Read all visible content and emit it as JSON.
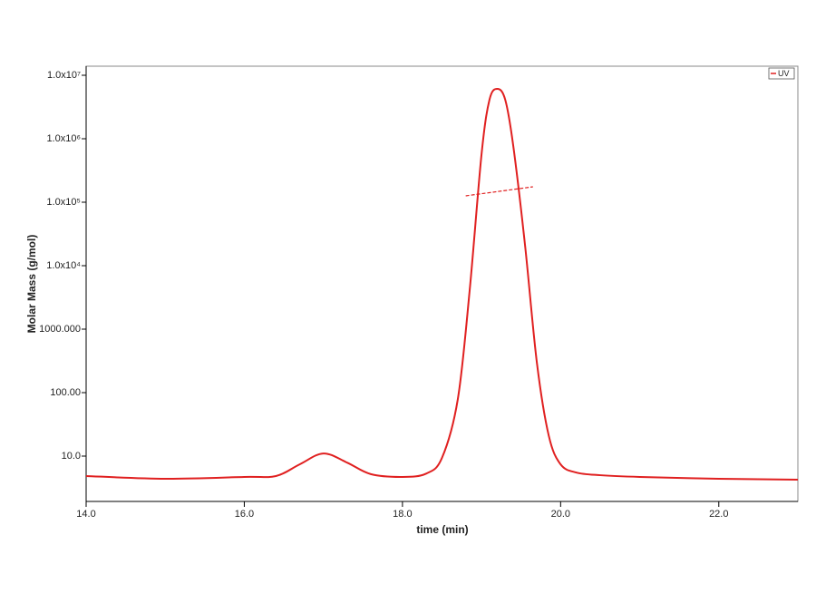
{
  "chart_data": {
    "type": "line",
    "x_label": "time (min)",
    "y_label": "Molar Mass (g/mol)",
    "yscale": "log",
    "xlim": [
      14,
      23
    ],
    "ylim": [
      1.93,
      13900000
    ],
    "xticks": [
      {
        "value": 14,
        "label": "14.0"
      },
      {
        "value": 16,
        "label": "16.0"
      },
      {
        "value": 18,
        "label": "18.0"
      },
      {
        "value": 20,
        "label": "20.0"
      },
      {
        "value": 22,
        "label": "22.0"
      }
    ],
    "yticks": [
      {
        "value": 10,
        "label": "10.0"
      },
      {
        "value": 100,
        "label": "100.00"
      },
      {
        "value": 1000,
        "label": "1000.000"
      },
      {
        "value": 10000,
        "label": "1.0x10⁴"
      },
      {
        "value": 100000,
        "label": "1.0x10⁵"
      },
      {
        "value": 1000000,
        "label": "1.0x10⁶"
      },
      {
        "value": 10000000,
        "label": "1.0x10⁷"
      }
    ],
    "legend": "top-right",
    "series": [
      {
        "name": "UV",
        "color": "#e02020",
        "style": "solid",
        "x": [
          14.0,
          15.0,
          16.0,
          16.4,
          16.7,
          17.0,
          17.3,
          17.6,
          18.0,
          18.3,
          18.5,
          18.7,
          18.85,
          19.0,
          19.1,
          19.2,
          19.3,
          19.4,
          19.55,
          19.7,
          19.85,
          20.0,
          20.2,
          20.5,
          21.0,
          22.0,
          23.0
        ],
        "values": [
          4.85,
          4.4,
          4.7,
          4.85,
          7.4,
          11.0,
          7.9,
          5.2,
          4.7,
          5.3,
          9.4,
          79,
          4100,
          570000,
          4100000,
          6100000,
          4100000,
          790000,
          21000,
          295,
          21,
          7.4,
          5.5,
          5.0,
          4.7,
          4.4,
          4.25
        ]
      },
      {
        "color": "#e02020",
        "style": "dashed",
        "x": [
          18.8,
          19.2,
          19.65
        ],
        "values": [
          126000,
          147000,
          175000
        ]
      }
    ]
  }
}
